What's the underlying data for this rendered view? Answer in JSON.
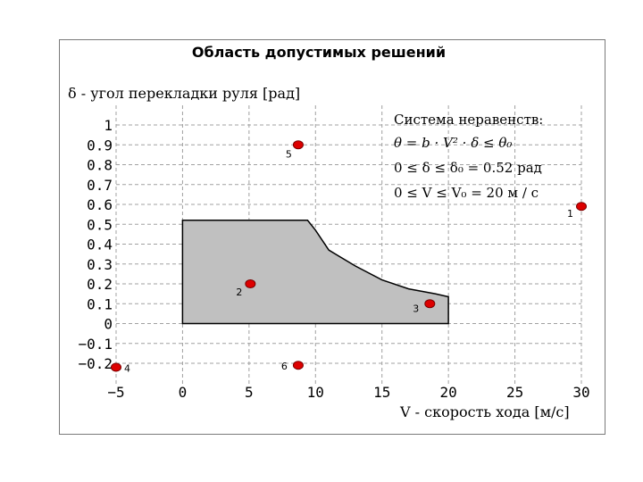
{
  "chart_data": {
    "type": "scatter",
    "title": "Область допустимых решений",
    "ylabel": "δ - угол перекладки руля [рад]",
    "xlabel": "V - скорость хода [м/с]",
    "xlim": [
      -5,
      30
    ],
    "ylim": [
      -0.2,
      1
    ],
    "x_ticks": [
      "−5",
      "0",
      "5",
      "10",
      "15",
      "20",
      "25",
      "30"
    ],
    "y_ticks": [
      "1",
      "0.9",
      "0.8",
      "0.7",
      "0.6",
      "0.5",
      "0.4",
      "0.3",
      "0.2",
      "0.1",
      "0",
      "−0.1",
      "−0.2"
    ],
    "grid": true,
    "region": {
      "fill": "#c0c0c0",
      "points": [
        [
          0,
          0
        ],
        [
          0,
          0.52
        ],
        [
          9.4,
          0.52
        ],
        [
          10.0,
          0.47
        ],
        [
          11.0,
          0.37
        ],
        [
          13.0,
          0.29
        ],
        [
          15.0,
          0.22
        ],
        [
          17.0,
          0.175
        ],
        [
          19.0,
          0.15
        ],
        [
          20.0,
          0.135
        ],
        [
          20.0,
          0
        ]
      ]
    },
    "points": [
      {
        "label": "1",
        "x": 30,
        "y": 0.59
      },
      {
        "label": "2",
        "x": 5.1,
        "y": 0.2
      },
      {
        "label": "3",
        "x": 18.6,
        "y": 0.1
      },
      {
        "label": "4",
        "x": -5,
        "y": -0.22
      },
      {
        "label": "5",
        "x": 8.7,
        "y": 0.9
      },
      {
        "label": "6",
        "x": 8.7,
        "y": -0.21
      }
    ],
    "point_color": "#dd0000",
    "inequalities": {
      "heading": "Система неравенств:",
      "line1": "θ = b · V² · δ ≤ θ₀",
      "line2": "0 ≤ δ ≤ δ₀ = 0.52 рад",
      "line3": "0 ≤ V ≤ V₀ = 20 м / с"
    }
  }
}
